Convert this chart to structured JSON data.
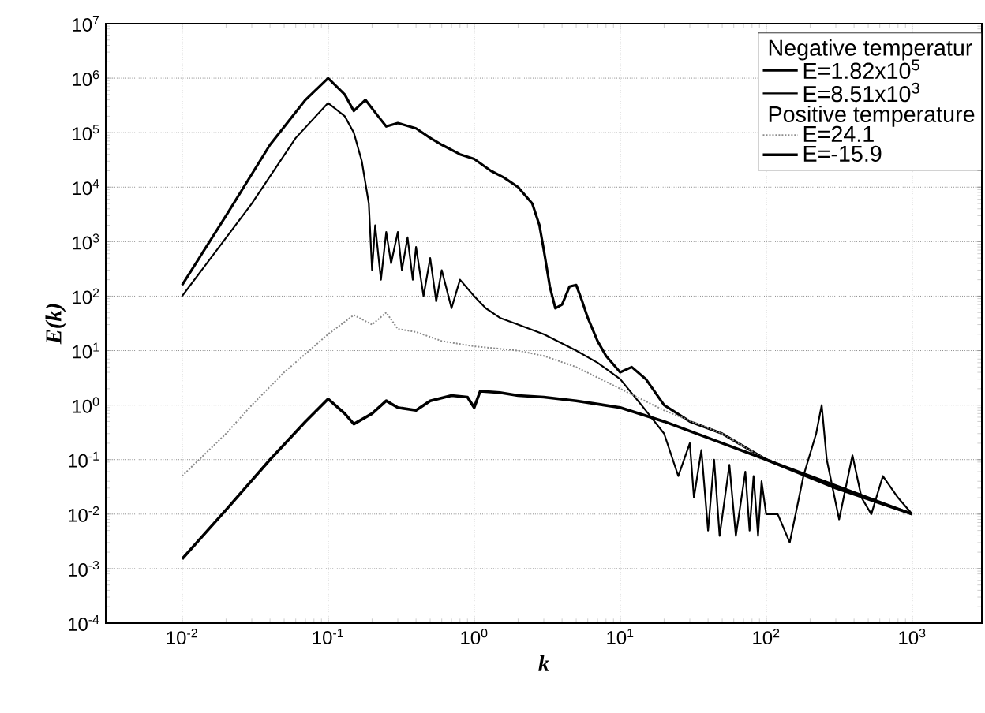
{
  "chart_data": {
    "type": "line",
    "xlabel": "k",
    "ylabel": "E(k)",
    "legend_title": "Negative temperatur",
    "annotations": [
      "Positive temperature"
    ],
    "log": "xy",
    "grid": true,
    "legend": "top right",
    "marker": "none",
    "xlim": [
      0.003,
      3000
    ],
    "ylim": [
      0.0001,
      10000000
    ],
    "xticks": [
      {
        "value": 0.01,
        "label": "10$^{-2}$"
      },
      {
        "value": 0.1,
        "label": "10$^{-1}$"
      },
      {
        "value": 1,
        "label": "10$^{0}$"
      },
      {
        "value": 10,
        "label": "10$^{1}$"
      },
      {
        "value": 100,
        "label": "10$^{2}$"
      },
      {
        "value": 1000,
        "label": "10$^{3}$"
      }
    ],
    "yticks": [
      {
        "value": 0.0001,
        "label": "10$^{-4}$"
      },
      {
        "value": 0.001,
        "label": "10$^{-3}$"
      },
      {
        "value": 0.01,
        "label": "10$^{-2}$"
      },
      {
        "value": 0.1,
        "label": "10$^{-1}$"
      },
      {
        "value": 1,
        "label": "10$^{0}$"
      },
      {
        "value": 10,
        "label": "10$^{1}$"
      },
      {
        "value": 100,
        "label": "10$^{2}$"
      },
      {
        "value": 1000,
        "label": "10$^{3}$"
      },
      {
        "value": 10000,
        "label": "10$^{4}$"
      },
      {
        "value": 100000,
        "label": "10$^{5}$"
      },
      {
        "value": 1000000,
        "label": "10$^{6}$"
      },
      {
        "value": 10000000,
        "label": "10$^{7}$"
      }
    ],
    "series": [
      {
        "name": "E=1.82x10$^{5}$",
        "color": "#000000",
        "line_style": "solid",
        "x": [
          0.01,
          0.02,
          0.04,
          0.07,
          0.1,
          0.13,
          0.15,
          0.18,
          0.22,
          0.25,
          0.3,
          0.4,
          0.5,
          0.6,
          0.8,
          1,
          1.3,
          1.6,
          2,
          2.5,
          2.8,
          3,
          3.3,
          3.6,
          4,
          4.5,
          5,
          5.5,
          6,
          7,
          8,
          10,
          12,
          15,
          20,
          30,
          50,
          100,
          200,
          500,
          1000
        ],
        "values": [
          160,
          3000,
          60000,
          400000,
          1000000,
          500000,
          250000,
          400000,
          200000,
          130000,
          150000,
          120000,
          80000,
          60000,
          40000,
          33000,
          20000,
          15000,
          10000,
          5000,
          2000,
          700,
          150,
          60,
          70,
          150,
          160,
          80,
          40,
          15,
          8,
          4,
          5,
          3,
          1,
          0.5,
          0.3,
          0.1,
          0.05,
          0.02,
          0.01
        ]
      },
      {
        "name": "E=8.51x10$^{3}$",
        "color": "#000000",
        "line_style": "solid",
        "x": [
          0.01,
          0.03,
          0.06,
          0.1,
          0.13,
          0.15,
          0.17,
          0.19,
          0.2,
          0.21,
          0.23,
          0.25,
          0.27,
          0.3,
          0.32,
          0.35,
          0.38,
          0.4,
          0.45,
          0.5,
          0.55,
          0.6,
          0.7,
          0.8,
          1,
          1.2,
          1.5,
          2,
          3,
          5,
          7,
          10,
          14,
          20,
          25,
          30,
          32,
          36,
          40,
          44,
          48,
          56,
          62,
          72,
          77,
          82,
          88,
          93,
          100,
          120,
          145,
          180,
          220,
          240,
          260,
          316,
          390,
          450,
          525,
          630,
          800,
          1000
        ],
        "values": [
          100,
          5000,
          80000,
          350000,
          200000,
          100000,
          30000,
          5000,
          300,
          2000,
          200,
          1500,
          400,
          1500,
          300,
          1200,
          200,
          800,
          100,
          500,
          80,
          300,
          60,
          200,
          100,
          60,
          40,
          30,
          20,
          10,
          6,
          3,
          1,
          0.3,
          0.05,
          0.2,
          0.02,
          0.15,
          0.005,
          0.1,
          0.004,
          0.08,
          0.004,
          0.06,
          0.005,
          0.05,
          0.004,
          0.04,
          0.01,
          0.01,
          0.003,
          0.05,
          0.3,
          1,
          0.1,
          0.008,
          0.12,
          0.02,
          0.01,
          0.05,
          0.02,
          0.01
        ]
      },
      {
        "name": "E=24.1",
        "color": "#8c8c8c",
        "line_style": "dotted",
        "x": [
          0.01,
          0.02,
          0.03,
          0.05,
          0.1,
          0.15,
          0.2,
          0.25,
          0.3,
          0.4,
          0.6,
          1,
          2,
          3,
          5,
          10,
          20,
          50,
          100,
          300,
          1000
        ],
        "values": [
          0.05,
          0.3,
          1,
          4,
          20,
          45,
          30,
          50,
          25,
          22,
          15,
          12,
          10,
          8,
          5,
          2,
          0.8,
          0.3,
          0.1,
          0.03,
          0.01
        ]
      },
      {
        "name": "E=-15.9",
        "color": "#000000",
        "line_style": "solid",
        "x": [
          0.01,
          0.02,
          0.04,
          0.07,
          0.1,
          0.13,
          0.15,
          0.2,
          0.25,
          0.3,
          0.4,
          0.5,
          0.7,
          0.9,
          1,
          1.1,
          1.5,
          2,
          3,
          5,
          10,
          20,
          50,
          100,
          300,
          1000
        ],
        "values": [
          0.0015,
          0.012,
          0.1,
          0.5,
          1.3,
          0.7,
          0.45,
          0.7,
          1.2,
          0.9,
          0.8,
          1.2,
          1.5,
          1.4,
          0.9,
          1.8,
          1.7,
          1.5,
          1.4,
          1.2,
          0.9,
          0.5,
          0.2,
          0.1,
          0.03,
          0.01
        ]
      }
    ]
  }
}
